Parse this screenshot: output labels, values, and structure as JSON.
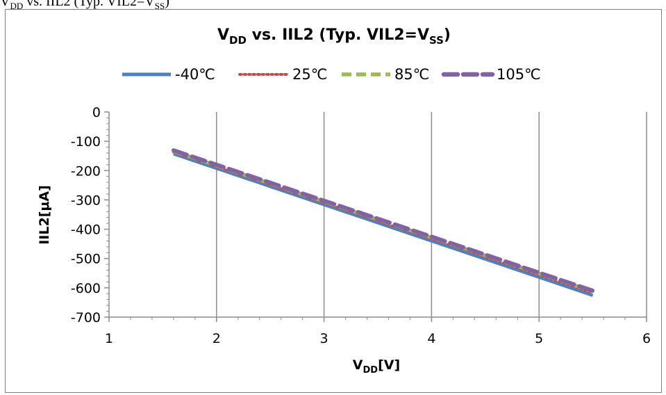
{
  "caption": {
    "main": "V",
    "sub1": "DD",
    "rest1": " vs. IIL2 (Typ. VIL2=V",
    "sub2": "SS",
    "rest2": ")"
  },
  "chart_data": {
    "type": "line",
    "title": {
      "main": "V",
      "sub1": "DD",
      "rest1": " vs. IIL2 (Typ. VIL2=V",
      "sub2": "SS",
      "rest2": ")"
    },
    "xlabel": {
      "main": "V",
      "sub": "DD",
      "rest": "[V]"
    },
    "ylabel": "IIL2[μA]",
    "xlim": [
      1,
      6
    ],
    "ylim": [
      -700,
      0
    ],
    "x_ticks": [
      "1",
      "2",
      "3",
      "4",
      "5",
      "6"
    ],
    "y_ticks": [
      "0",
      "-100",
      "-200",
      "-300",
      "-400",
      "-500",
      "-600",
      "-700"
    ],
    "grid": true,
    "legend_position": "top",
    "series": [
      {
        "name": "-40℃",
        "color": "#4f81bd",
        "dash": "solid",
        "x": [
          1.6,
          5.5
        ],
        "y": [
          -143,
          -626
        ]
      },
      {
        "name": "25℃",
        "color": "#c0504d",
        "dash": "dotted",
        "x": [
          1.6,
          5.5
        ],
        "y": [
          -138,
          -618
        ]
      },
      {
        "name": "85℃",
        "color": "#9bbb59",
        "dash": "dashed",
        "x": [
          1.6,
          5.5
        ],
        "y": [
          -134,
          -612
        ]
      },
      {
        "name": "105℃",
        "color": "#8064a2",
        "dash": "longdash",
        "x": [
          1.6,
          5.5
        ],
        "y": [
          -131,
          -610
        ]
      }
    ]
  }
}
